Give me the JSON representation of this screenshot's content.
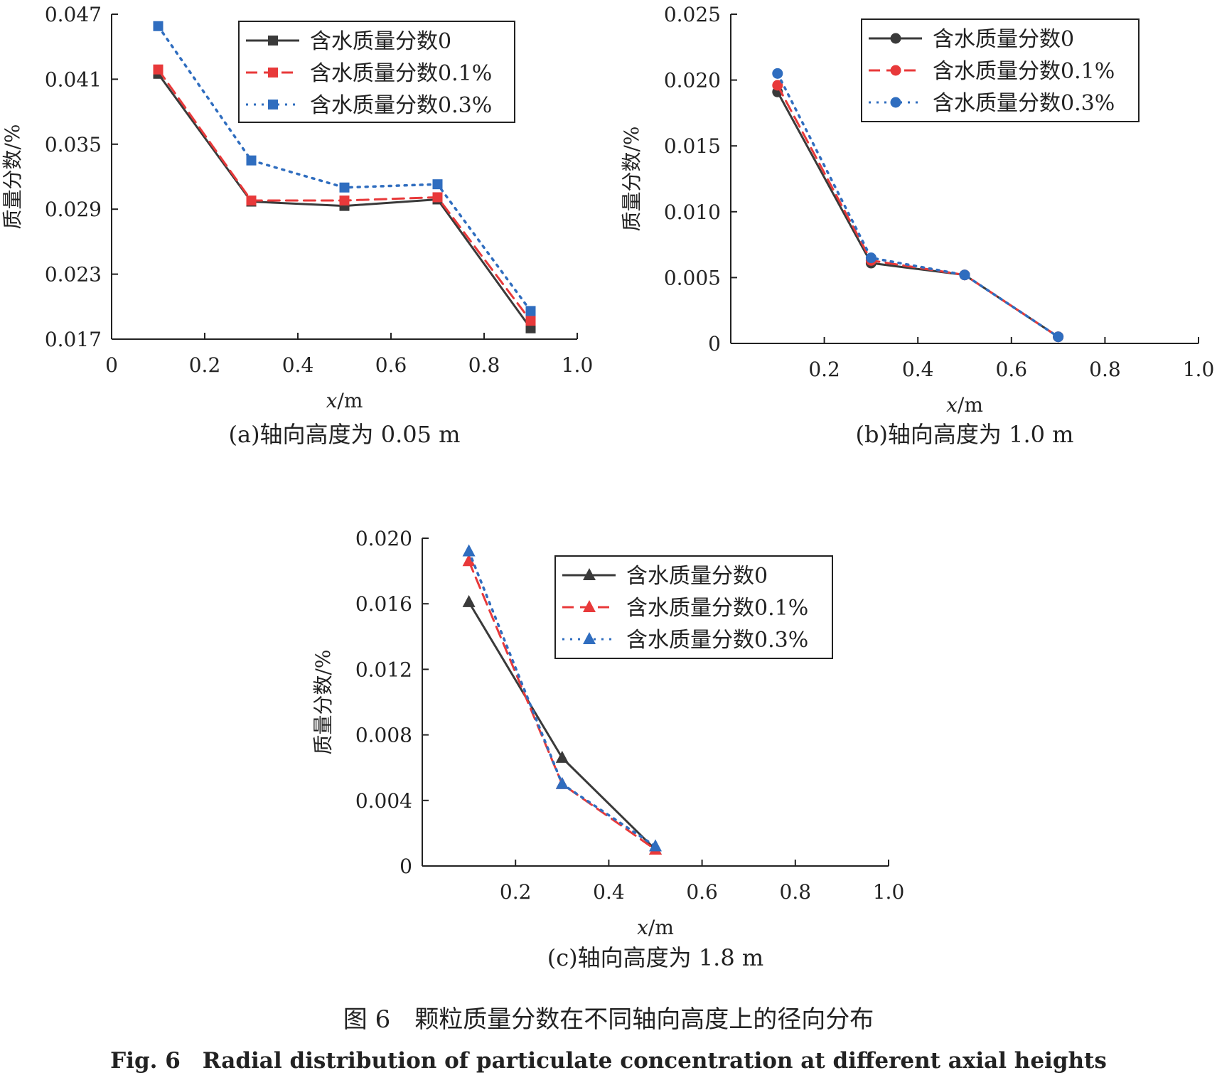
{
  "chart_data": [
    {
      "type": "line",
      "caption": "(a)轴向高度为 0.05 m",
      "xlabel_var": "x",
      "xlabel_unit": "/m",
      "ylabel": "质量分数/%",
      "xlim": [
        0,
        1.0
      ],
      "ylim": [
        0.017,
        0.047
      ],
      "xticks": [
        0,
        0.2,
        0.4,
        0.6,
        0.8,
        1.0
      ],
      "xtick_labels": [
        "0",
        "0.2",
        "0.4",
        "0.6",
        "0.8",
        "1.0"
      ],
      "yticks": [
        0.017,
        0.023,
        0.029,
        0.035,
        0.041,
        0.047
      ],
      "ytick_labels": [
        "0.017",
        "0.023",
        "0.029",
        "0.035",
        "0.041",
        "0.047"
      ],
      "marker": "square",
      "legend_position": "top-right",
      "series": [
        {
          "name": "含水质量分数0",
          "x": [
            0.1,
            0.3,
            0.5,
            0.7,
            0.9
          ],
          "y": [
            0.0415,
            0.0297,
            0.0293,
            0.0299,
            0.018
          ],
          "color": "#3a3a3a",
          "dash": "solid"
        },
        {
          "name": "含水质量分数0.1%",
          "x": [
            0.1,
            0.3,
            0.5,
            0.7,
            0.9
          ],
          "y": [
            0.0419,
            0.0298,
            0.0298,
            0.0301,
            0.0187
          ],
          "color": "#e8393a",
          "dash": "dashed"
        },
        {
          "name": "含水质量分数0.3%",
          "x": [
            0.1,
            0.3,
            0.5,
            0.7,
            0.9
          ],
          "y": [
            0.0459,
            0.0335,
            0.031,
            0.0313,
            0.0196
          ],
          "color": "#2f6dbf",
          "dash": "dotted"
        }
      ]
    },
    {
      "type": "line",
      "caption": "(b)轴向高度为 1.0 m",
      "xlabel_var": "x",
      "xlabel_unit": "/m",
      "ylabel": "质量分数/%",
      "xlim": [
        0,
        1.0
      ],
      "ylim": [
        0,
        0.025
      ],
      "xticks": [
        0.2,
        0.4,
        0.6,
        0.8,
        1.0
      ],
      "xtick_labels": [
        "0.2",
        "0.4",
        "0.6",
        "0.8",
        "1.0"
      ],
      "yticks": [
        0,
        0.005,
        0.01,
        0.015,
        0.02,
        0.025
      ],
      "ytick_labels": [
        "0",
        "0.005",
        "0.010",
        "0.015",
        "0.020",
        "0.025"
      ],
      "marker": "circle",
      "legend_position": "top-right",
      "series": [
        {
          "name": "含水质量分数0",
          "x": [
            0.1,
            0.3,
            0.5,
            0.7
          ],
          "y": [
            0.0191,
            0.0061,
            0.0052,
            0.0005
          ],
          "color": "#3a3a3a",
          "dash": "solid"
        },
        {
          "name": "含水质量分数0.1%",
          "x": [
            0.1,
            0.3,
            0.5,
            0.7
          ],
          "y": [
            0.0196,
            0.0063,
            0.0052,
            0.0005
          ],
          "color": "#e8393a",
          "dash": "dashed"
        },
        {
          "name": "含水质量分数0.3%",
          "x": [
            0.1,
            0.3,
            0.5,
            0.7
          ],
          "y": [
            0.0205,
            0.0065,
            0.0052,
            0.0005
          ],
          "color": "#2f6dbf",
          "dash": "dotted"
        }
      ]
    },
    {
      "type": "line",
      "caption": "(c)轴向高度为 1.8 m",
      "xlabel_var": "x",
      "xlabel_unit": "/m",
      "ylabel": "质量分数/%",
      "xlim": [
        0,
        1.0
      ],
      "ylim": [
        0,
        0.02
      ],
      "xticks": [
        0.2,
        0.4,
        0.6,
        0.8,
        1.0
      ],
      "xtick_labels": [
        "0.2",
        "0.4",
        "0.6",
        "0.8",
        "1.0"
      ],
      "yticks": [
        0,
        0.004,
        0.008,
        0.012,
        0.016,
        0.02
      ],
      "ytick_labels": [
        "0",
        "0.004",
        "0.008",
        "0.012",
        "0.016",
        "0.020"
      ],
      "marker": "triangle",
      "legend_position": "top-right",
      "series": [
        {
          "name": "含水质量分数0",
          "x": [
            0.1,
            0.3,
            0.5
          ],
          "y": [
            0.0161,
            0.0066,
            0.001
          ],
          "color": "#3a3a3a",
          "dash": "solid"
        },
        {
          "name": "含水质量分数0.1%",
          "x": [
            0.1,
            0.3,
            0.5
          ],
          "y": [
            0.0186,
            0.005,
            0.001
          ],
          "color": "#e8393a",
          "dash": "dashed"
        },
        {
          "name": "含水质量分数0.3%",
          "x": [
            0.1,
            0.3,
            0.5
          ],
          "y": [
            0.0192,
            0.005,
            0.0012
          ],
          "color": "#2f6dbf",
          "dash": "dotted"
        }
      ]
    }
  ],
  "figure": {
    "title_cn": "图 6　颗粒质量分数在不同轴向高度上的径向分布",
    "title_en": "Fig. 6　Radial distribution of particulate concentration at different axial heights"
  }
}
